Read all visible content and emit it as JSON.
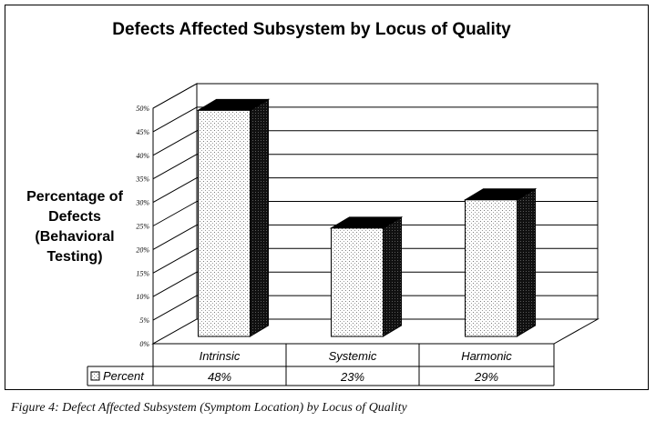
{
  "chart_data": {
    "type": "bar",
    "title": "Defects Affected Subsystem by Locus of Quality",
    "ylabel_lines": [
      "Percentage of",
      "Defects",
      "(Behavioral",
      "Testing)"
    ],
    "categories": [
      "Intrinsic",
      "Systemic",
      "Harmonic"
    ],
    "series": [
      {
        "name": "Percent",
        "values": [
          48,
          23,
          29
        ],
        "value_labels": [
          "48%",
          "23%",
          "29%"
        ]
      }
    ],
    "yticks": [
      "0%",
      "5%",
      "10%",
      "15%",
      "20%",
      "25%",
      "30%",
      "35%",
      "40%",
      "45%",
      "50%"
    ],
    "ylim": [
      0,
      50
    ],
    "grid": true,
    "legend": "data-table"
  },
  "caption": "Figure 4: Defect Affected Subsystem (Symptom Location) by Locus of Quality",
  "colors": {
    "bar_face": "#ffffff",
    "bar_dots": "#888888",
    "bar_side": "#111111",
    "grid": "#000000"
  }
}
